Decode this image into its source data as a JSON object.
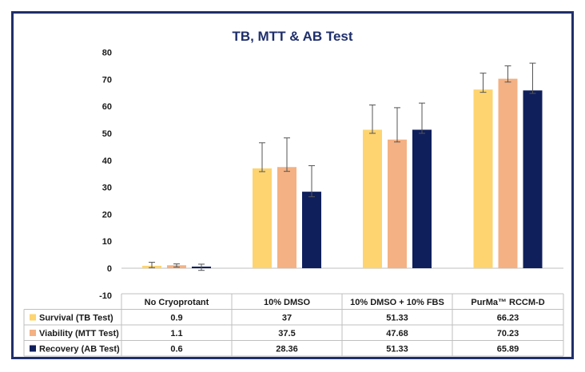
{
  "chart_data": {
    "type": "bar",
    "title": "TB, MTT & AB Test",
    "xlabel": "",
    "ylabel": "",
    "ylim": [
      -10,
      80
    ],
    "yticks": [
      -10,
      0,
      10,
      20,
      30,
      40,
      50,
      60,
      70,
      80
    ],
    "grid": false,
    "legend": "table-left",
    "categories": [
      "No Cryoprotant",
      "10% DMSO",
      "10% DMSO + 10% FBS",
      "PurMa™ RCCM-D"
    ],
    "series": [
      {
        "name": "Survival (TB Test)",
        "color": "#fdd470",
        "values": [
          0.9,
          37,
          51.33,
          66.23
        ],
        "error_upper": [
          2.2,
          46.5,
          60.5,
          72.3
        ],
        "error_lower": [
          0.2,
          35.8,
          50.0,
          65.2
        ],
        "labels": [
          "0.9",
          "37",
          "51.33",
          "66.23"
        ]
      },
      {
        "name": "Viability (MTT Test)",
        "color": "#f4b183",
        "values": [
          1.1,
          37.5,
          47.68,
          70.23
        ],
        "error_upper": [
          1.6,
          48.3,
          59.5,
          75.0
        ],
        "error_lower": [
          0.4,
          35.9,
          46.8,
          69.0
        ],
        "labels": [
          "1.1",
          "37.5",
          "47.68",
          "70.23"
        ]
      },
      {
        "name": "Recovery (AB Test)",
        "color": "#0f1f5c",
        "values": [
          0.6,
          28.36,
          51.33,
          65.89
        ],
        "error_upper": [
          1.5,
          38.0,
          61.2,
          76.0
        ],
        "error_lower": [
          -0.8,
          26.5,
          50.0,
          64.8
        ],
        "labels": [
          "0.6",
          "28.36",
          "51.33",
          "65.89"
        ]
      }
    ]
  }
}
